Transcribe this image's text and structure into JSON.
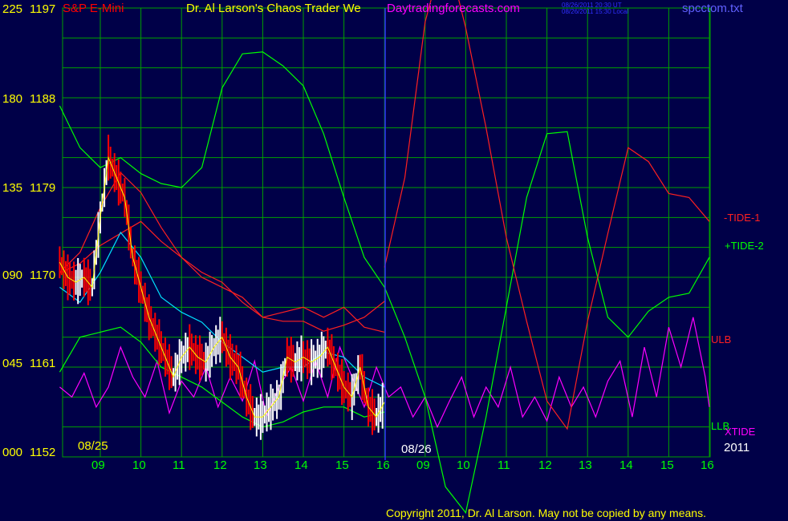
{
  "header": {
    "instrument": "S&P E-Mini",
    "title": "Dr. Al Larson's Chaos Trader We",
    "site": "Daytradingforecasts.com",
    "timestamp_ut": "08/26/2011 20:30 UT",
    "timestamp_local": "08/26/2011 15:30 Local",
    "file": "spcctom.txt"
  },
  "copyright": "Copyright 2011, Dr. Al Larson. May not be copied by any means.",
  "colors": {
    "background": "#000048",
    "grid": "#00a000",
    "instrument": "#ff0000",
    "title": "#ffff00",
    "site": "#ff00ff",
    "timestamp": "#3030ff",
    "file": "#6060ff",
    "price_up": "#ffffff",
    "price_down": "#ff0000"
  },
  "chart_data": {
    "type": "line",
    "y_left": {
      "ticks": [
        "225",
        "180",
        "135",
        "090",
        "045",
        "000"
      ],
      "range": [
        0,
        225
      ]
    },
    "y_right": {
      "ticks": [
        "1197",
        "1188",
        "1179",
        "1170",
        "1161",
        "1152"
      ],
      "range": [
        1152,
        1197
      ]
    },
    "x": {
      "ticks": [
        "09",
        "10",
        "11",
        "12",
        "13",
        "14",
        "15",
        "16",
        "09",
        "10",
        "11",
        "12",
        "13",
        "14",
        "15",
        "16"
      ],
      "date_markers": [
        "08/25",
        "08/26",
        "2011"
      ]
    },
    "grid": true,
    "series": [
      {
        "name": "-TIDE-1",
        "color": "#ff2020",
        "y": "left",
        "points": []
      },
      {
        "name": "+TIDE-2",
        "color": "#00ff00",
        "y": "left",
        "points": []
      },
      {
        "name": "ULB",
        "color": "#ff2020",
        "y": "right",
        "points": []
      },
      {
        "name": "LLB",
        "color": "#00ff00",
        "y": "right",
        "points": []
      },
      {
        "name": "XTIDE",
        "color": "#ff00ff",
        "y": "left",
        "points": []
      }
    ],
    "tide1_forecast": [
      [
        16.0,
        95
      ],
      [
        16.5,
        140
      ],
      [
        17.0,
        218
      ],
      [
        17.5,
        256
      ],
      [
        18.0,
        215
      ],
      [
        18.5,
        165
      ],
      [
        19.0,
        110
      ],
      [
        19.5,
        68
      ],
      [
        20.0,
        28
      ],
      [
        20.5,
        14
      ],
      [
        21.0,
        68
      ],
      [
        21.5,
        112
      ],
      [
        22.0,
        155
      ],
      [
        22.5,
        148
      ],
      [
        23.0,
        132
      ],
      [
        23.5,
        130
      ],
      [
        24.0,
        118
      ]
    ],
    "tide2_forecast": [
      [
        16.0,
        85
      ],
      [
        16.5,
        60
      ],
      [
        17.0,
        30
      ],
      [
        17.5,
        -15
      ],
      [
        18.0,
        -28
      ],
      [
        18.5,
        20
      ],
      [
        19.0,
        75
      ],
      [
        19.5,
        130
      ],
      [
        20.0,
        162
      ],
      [
        20.5,
        163
      ],
      [
        21.0,
        110
      ],
      [
        21.5,
        70
      ],
      [
        22.0,
        60
      ],
      [
        22.5,
        73
      ],
      [
        23.0,
        80
      ],
      [
        23.5,
        82
      ],
      [
        24.0,
        100
      ]
    ],
    "tide2_actual": [
      [
        8.0,
        176
      ],
      [
        8.5,
        155
      ],
      [
        9.0,
        145
      ],
      [
        9.5,
        150
      ],
      [
        10.0,
        142
      ],
      [
        10.5,
        137
      ],
      [
        11.0,
        135
      ],
      [
        11.5,
        145
      ],
      [
        12.0,
        185
      ],
      [
        12.5,
        202
      ],
      [
        13.0,
        203
      ],
      [
        13.5,
        196
      ],
      [
        14.0,
        186
      ],
      [
        14.5,
        162
      ],
      [
        15.0,
        130
      ],
      [
        15.5,
        100
      ],
      [
        16.0,
        85
      ]
    ],
    "tide1_actual": [
      [
        8.0,
        92
      ],
      [
        8.5,
        97
      ],
      [
        9.0,
        106
      ],
      [
        9.5,
        112
      ],
      [
        10.0,
        118
      ],
      [
        10.5,
        108
      ],
      [
        11.0,
        100
      ],
      [
        11.5,
        90
      ],
      [
        12.0,
        85
      ],
      [
        12.5,
        80
      ],
      [
        13.0,
        70
      ],
      [
        13.5,
        68
      ],
      [
        14.0,
        68
      ],
      [
        14.5,
        63
      ],
      [
        15.0,
        66
      ],
      [
        15.5,
        70
      ],
      [
        16.0,
        78
      ]
    ],
    "ulb": [
      [
        8.0,
        1170.5
      ],
      [
        8.5,
        1172.5
      ],
      [
        9.0,
        1177
      ],
      [
        9.5,
        1180.5
      ],
      [
        10.0,
        1178.5
      ],
      [
        10.5,
        1175
      ],
      [
        11.0,
        1172
      ],
      [
        11.5,
        1170.5
      ],
      [
        12.0,
        1169.5
      ],
      [
        12.5,
        1167.5
      ],
      [
        13.0,
        1166
      ],
      [
        13.5,
        1166.5
      ],
      [
        14.0,
        1167
      ],
      [
        14.5,
        1166
      ],
      [
        15.0,
        1167
      ],
      [
        15.5,
        1165
      ],
      [
        16.0,
        1164.5
      ]
    ],
    "llb": [
      [
        8.0,
        1160.5
      ],
      [
        8.5,
        1164
      ],
      [
        9.0,
        1164.5
      ],
      [
        9.5,
        1165
      ],
      [
        10.0,
        1163.5
      ],
      [
        10.5,
        1161
      ],
      [
        11.0,
        1160
      ],
      [
        11.5,
        1159
      ],
      [
        12.0,
        1157.5
      ],
      [
        12.5,
        1156
      ],
      [
        13.0,
        1155
      ],
      [
        13.5,
        1155.5
      ],
      [
        14.0,
        1156.5
      ],
      [
        14.5,
        1157
      ],
      [
        15.0,
        1157
      ],
      [
        15.5,
        1156
      ],
      [
        16.0,
        1156.5
      ]
    ],
    "ma_cyan": [
      [
        8.0,
        1169
      ],
      [
        8.5,
        1167.5
      ],
      [
        9.0,
        1170.5
      ],
      [
        9.5,
        1174.5
      ],
      [
        10.0,
        1172
      ],
      [
        10.5,
        1168
      ],
      [
        11.0,
        1166.5
      ],
      [
        11.5,
        1165.5
      ],
      [
        12.0,
        1163.5
      ],
      [
        12.5,
        1162
      ],
      [
        13.0,
        1160.5
      ],
      [
        13.5,
        1161
      ],
      [
        14.0,
        1161
      ],
      [
        14.5,
        1162.5
      ],
      [
        15.0,
        1162
      ],
      [
        15.5,
        1160
      ],
      [
        16.0,
        1159
      ]
    ],
    "xtide": [
      [
        8.0,
        35
      ],
      [
        8.3,
        30
      ],
      [
        8.6,
        42
      ],
      [
        8.9,
        25
      ],
      [
        9.2,
        35
      ],
      [
        9.5,
        55
      ],
      [
        9.8,
        40
      ],
      [
        10.1,
        30
      ],
      [
        10.4,
        48
      ],
      [
        10.7,
        22
      ],
      [
        11.0,
        38
      ],
      [
        11.3,
        30
      ],
      [
        11.6,
        45
      ],
      [
        11.9,
        25
      ],
      [
        12.2,
        40
      ],
      [
        12.5,
        28
      ],
      [
        12.8,
        48
      ],
      [
        13.1,
        20
      ],
      [
        13.4,
        35
      ],
      [
        13.7,
        45
      ],
      [
        14.0,
        28
      ],
      [
        14.3,
        48
      ],
      [
        14.6,
        30
      ],
      [
        14.9,
        55
      ],
      [
        15.2,
        40
      ],
      [
        15.5,
        25
      ],
      [
        15.8,
        45
      ],
      [
        16.1,
        30
      ],
      [
        16.4,
        35
      ],
      [
        16.7,
        20
      ],
      [
        17.0,
        30
      ],
      [
        17.3,
        15
      ],
      [
        17.6,
        28
      ],
      [
        17.9,
        40
      ],
      [
        18.2,
        20
      ],
      [
        18.5,
        35
      ],
      [
        18.8,
        25
      ],
      [
        19.1,
        45
      ],
      [
        19.4,
        20
      ],
      [
        19.7,
        30
      ],
      [
        20.0,
        18
      ],
      [
        20.3,
        40
      ],
      [
        20.6,
        25
      ],
      [
        20.9,
        35
      ],
      [
        21.2,
        20
      ],
      [
        21.5,
        38
      ],
      [
        21.8,
        48
      ],
      [
        22.1,
        20
      ],
      [
        22.4,
        55
      ],
      [
        22.7,
        30
      ],
      [
        23.0,
        65
      ],
      [
        23.3,
        45
      ],
      [
        23.6,
        70
      ],
      [
        23.9,
        40
      ],
      [
        24.0,
        25
      ]
    ],
    "price_close": [
      [
        8.0,
        1171.5
      ],
      [
        8.2,
        1170
      ],
      [
        8.4,
        1169.5
      ],
      [
        8.6,
        1170
      ],
      [
        8.8,
        1169
      ],
      [
        9.0,
        1176
      ],
      [
        9.2,
        1182
      ],
      [
        9.4,
        1180
      ],
      [
        9.6,
        1178
      ],
      [
        9.8,
        1172
      ],
      [
        10.0,
        1169
      ],
      [
        10.2,
        1166
      ],
      [
        10.4,
        1164
      ],
      [
        10.6,
        1162
      ],
      [
        10.8,
        1160
      ],
      [
        11.0,
        1162
      ],
      [
        11.2,
        1163
      ],
      [
        11.4,
        1162
      ],
      [
        11.6,
        1161.5
      ],
      [
        11.8,
        1163
      ],
      [
        12.0,
        1164
      ],
      [
        12.2,
        1162
      ],
      [
        12.4,
        1161
      ],
      [
        12.6,
        1158
      ],
      [
        12.8,
        1156
      ],
      [
        13.0,
        1156
      ],
      [
        13.2,
        1157
      ],
      [
        13.4,
        1158
      ],
      [
        13.6,
        1162
      ],
      [
        13.8,
        1161.5
      ],
      [
        14.0,
        1162
      ],
      [
        14.2,
        1161.5
      ],
      [
        14.4,
        1162
      ],
      [
        14.6,
        1163
      ],
      [
        14.8,
        1161
      ],
      [
        15.0,
        1159
      ],
      [
        15.2,
        1158
      ],
      [
        15.4,
        1161
      ],
      [
        15.6,
        1157
      ],
      [
        15.8,
        1156
      ],
      [
        16.0,
        1157.5
      ]
    ]
  }
}
